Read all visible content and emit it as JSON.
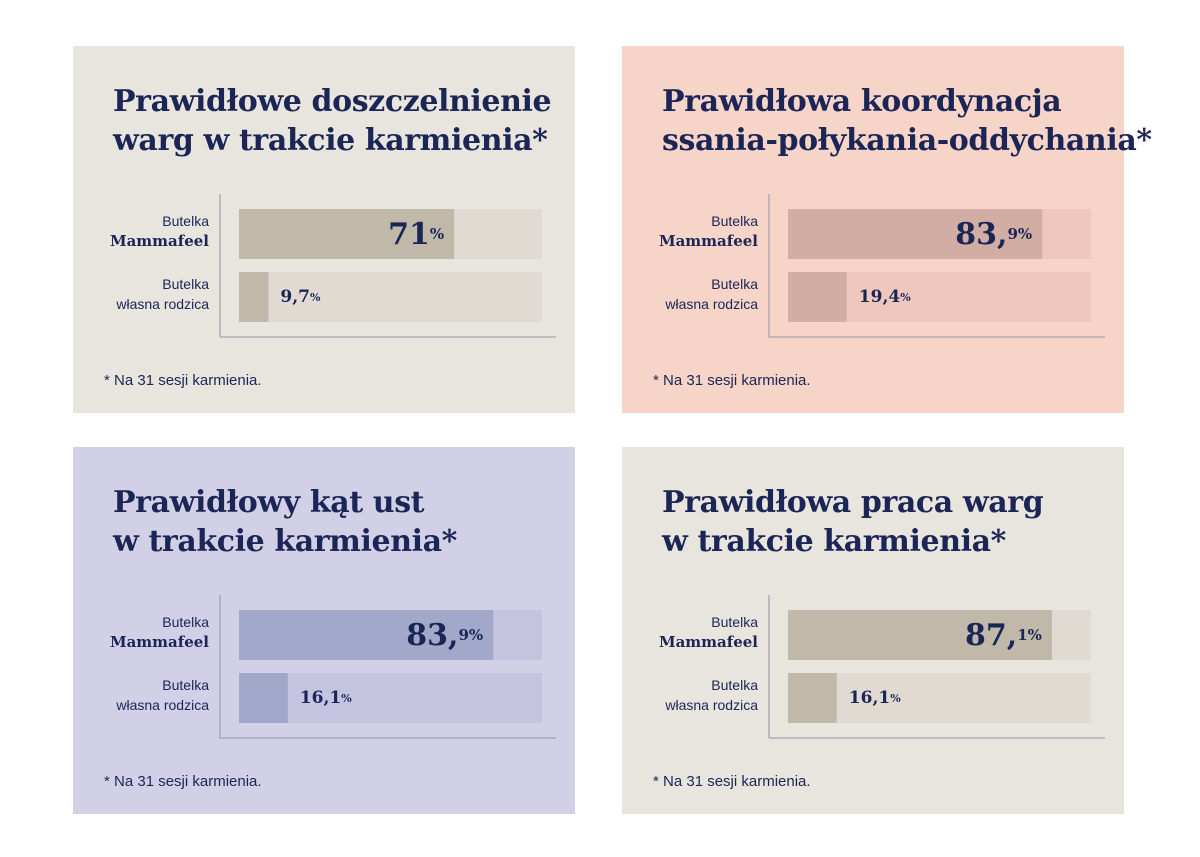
{
  "colors": {
    "ink": "#1b2556"
  },
  "panels": [
    {
      "background": "#e8e5de",
      "bar_color": "#c0b8a8",
      "track_color": "#e0dad3",
      "title_lines": [
        "Prawidłowe doszczelnienie",
        "warg w trakcie karmienia*"
      ],
      "footnote": "* Na 31 sesji karmienia.",
      "chart_data": {
        "type": "bar",
        "orientation": "horizontal",
        "categories": [
          {
            "line1": "Butelka",
            "line2": "Mammafeel",
            "line2_bold": true
          },
          {
            "line1": "Butelka",
            "line2": "własna rodzica",
            "line2_bold": false
          }
        ],
        "values": [
          71,
          9.7
        ],
        "value_labels": [
          {
            "number": "71",
            "suffix": "%"
          },
          {
            "number": "9,7",
            "suffix": "%"
          }
        ],
        "unit": "%",
        "xlim": [
          0,
          100
        ],
        "grid": false
      }
    },
    {
      "background": "#f6d4c8",
      "bar_color": "#d1ada4",
      "track_color": "#eec8bd",
      "title_lines": [
        "Prawidłowa koordynacja",
        "ssania-połykania-oddychania*"
      ],
      "footnote": "* Na 31 sesji karmienia.",
      "chart_data": {
        "type": "bar",
        "orientation": "horizontal",
        "categories": [
          {
            "line1": "Butelka",
            "line2": "Mammafeel",
            "line2_bold": true
          },
          {
            "line1": "Butelka",
            "line2": "własna rodzica",
            "line2_bold": false
          }
        ],
        "values": [
          83.9,
          19.4
        ],
        "value_labels": [
          {
            "number": "83,",
            "suffix": "9%"
          },
          {
            "number": "19,4",
            "suffix": "%"
          }
        ],
        "unit": "%",
        "xlim": [
          0,
          100
        ],
        "grid": false
      }
    },
    {
      "background": "#d2d0e7",
      "bar_color": "#a2a8ca",
      "track_color": "#c4c4e0",
      "title_lines": [
        "Prawidłowy kąt ust",
        "w trakcie karmienia*"
      ],
      "footnote": "* Na 31 sesji karmienia.",
      "chart_data": {
        "type": "bar",
        "orientation": "horizontal",
        "categories": [
          {
            "line1": "Butelka",
            "line2": "Mammafeel",
            "line2_bold": true
          },
          {
            "line1": "Butelka",
            "line2": "własna rodzica",
            "line2_bold": false
          }
        ],
        "values": [
          83.9,
          16.1
        ],
        "value_labels": [
          {
            "number": "83,",
            "suffix": "9%"
          },
          {
            "number": "16,1",
            "suffix": "%"
          }
        ],
        "unit": "%",
        "xlim": [
          0,
          100
        ],
        "grid": false
      }
    },
    {
      "background": "#e8e5de",
      "bar_color": "#c0b8a8",
      "track_color": "#e0dad3",
      "title_lines": [
        "Prawidłowa praca warg",
        "w trakcie karmienia*"
      ],
      "footnote": "* Na 31 sesji karmienia.",
      "chart_data": {
        "type": "bar",
        "orientation": "horizontal",
        "categories": [
          {
            "line1": "Butelka",
            "line2": "Mammafeel",
            "line2_bold": true
          },
          {
            "line1": "Butelka",
            "line2": "własna rodzica",
            "line2_bold": false
          }
        ],
        "values": [
          87.1,
          16.1
        ],
        "value_labels": [
          {
            "number": "87,",
            "suffix": "1%"
          },
          {
            "number": "16,1",
            "suffix": "%"
          }
        ],
        "unit": "%",
        "xlim": [
          0,
          100
        ],
        "grid": false
      }
    }
  ]
}
